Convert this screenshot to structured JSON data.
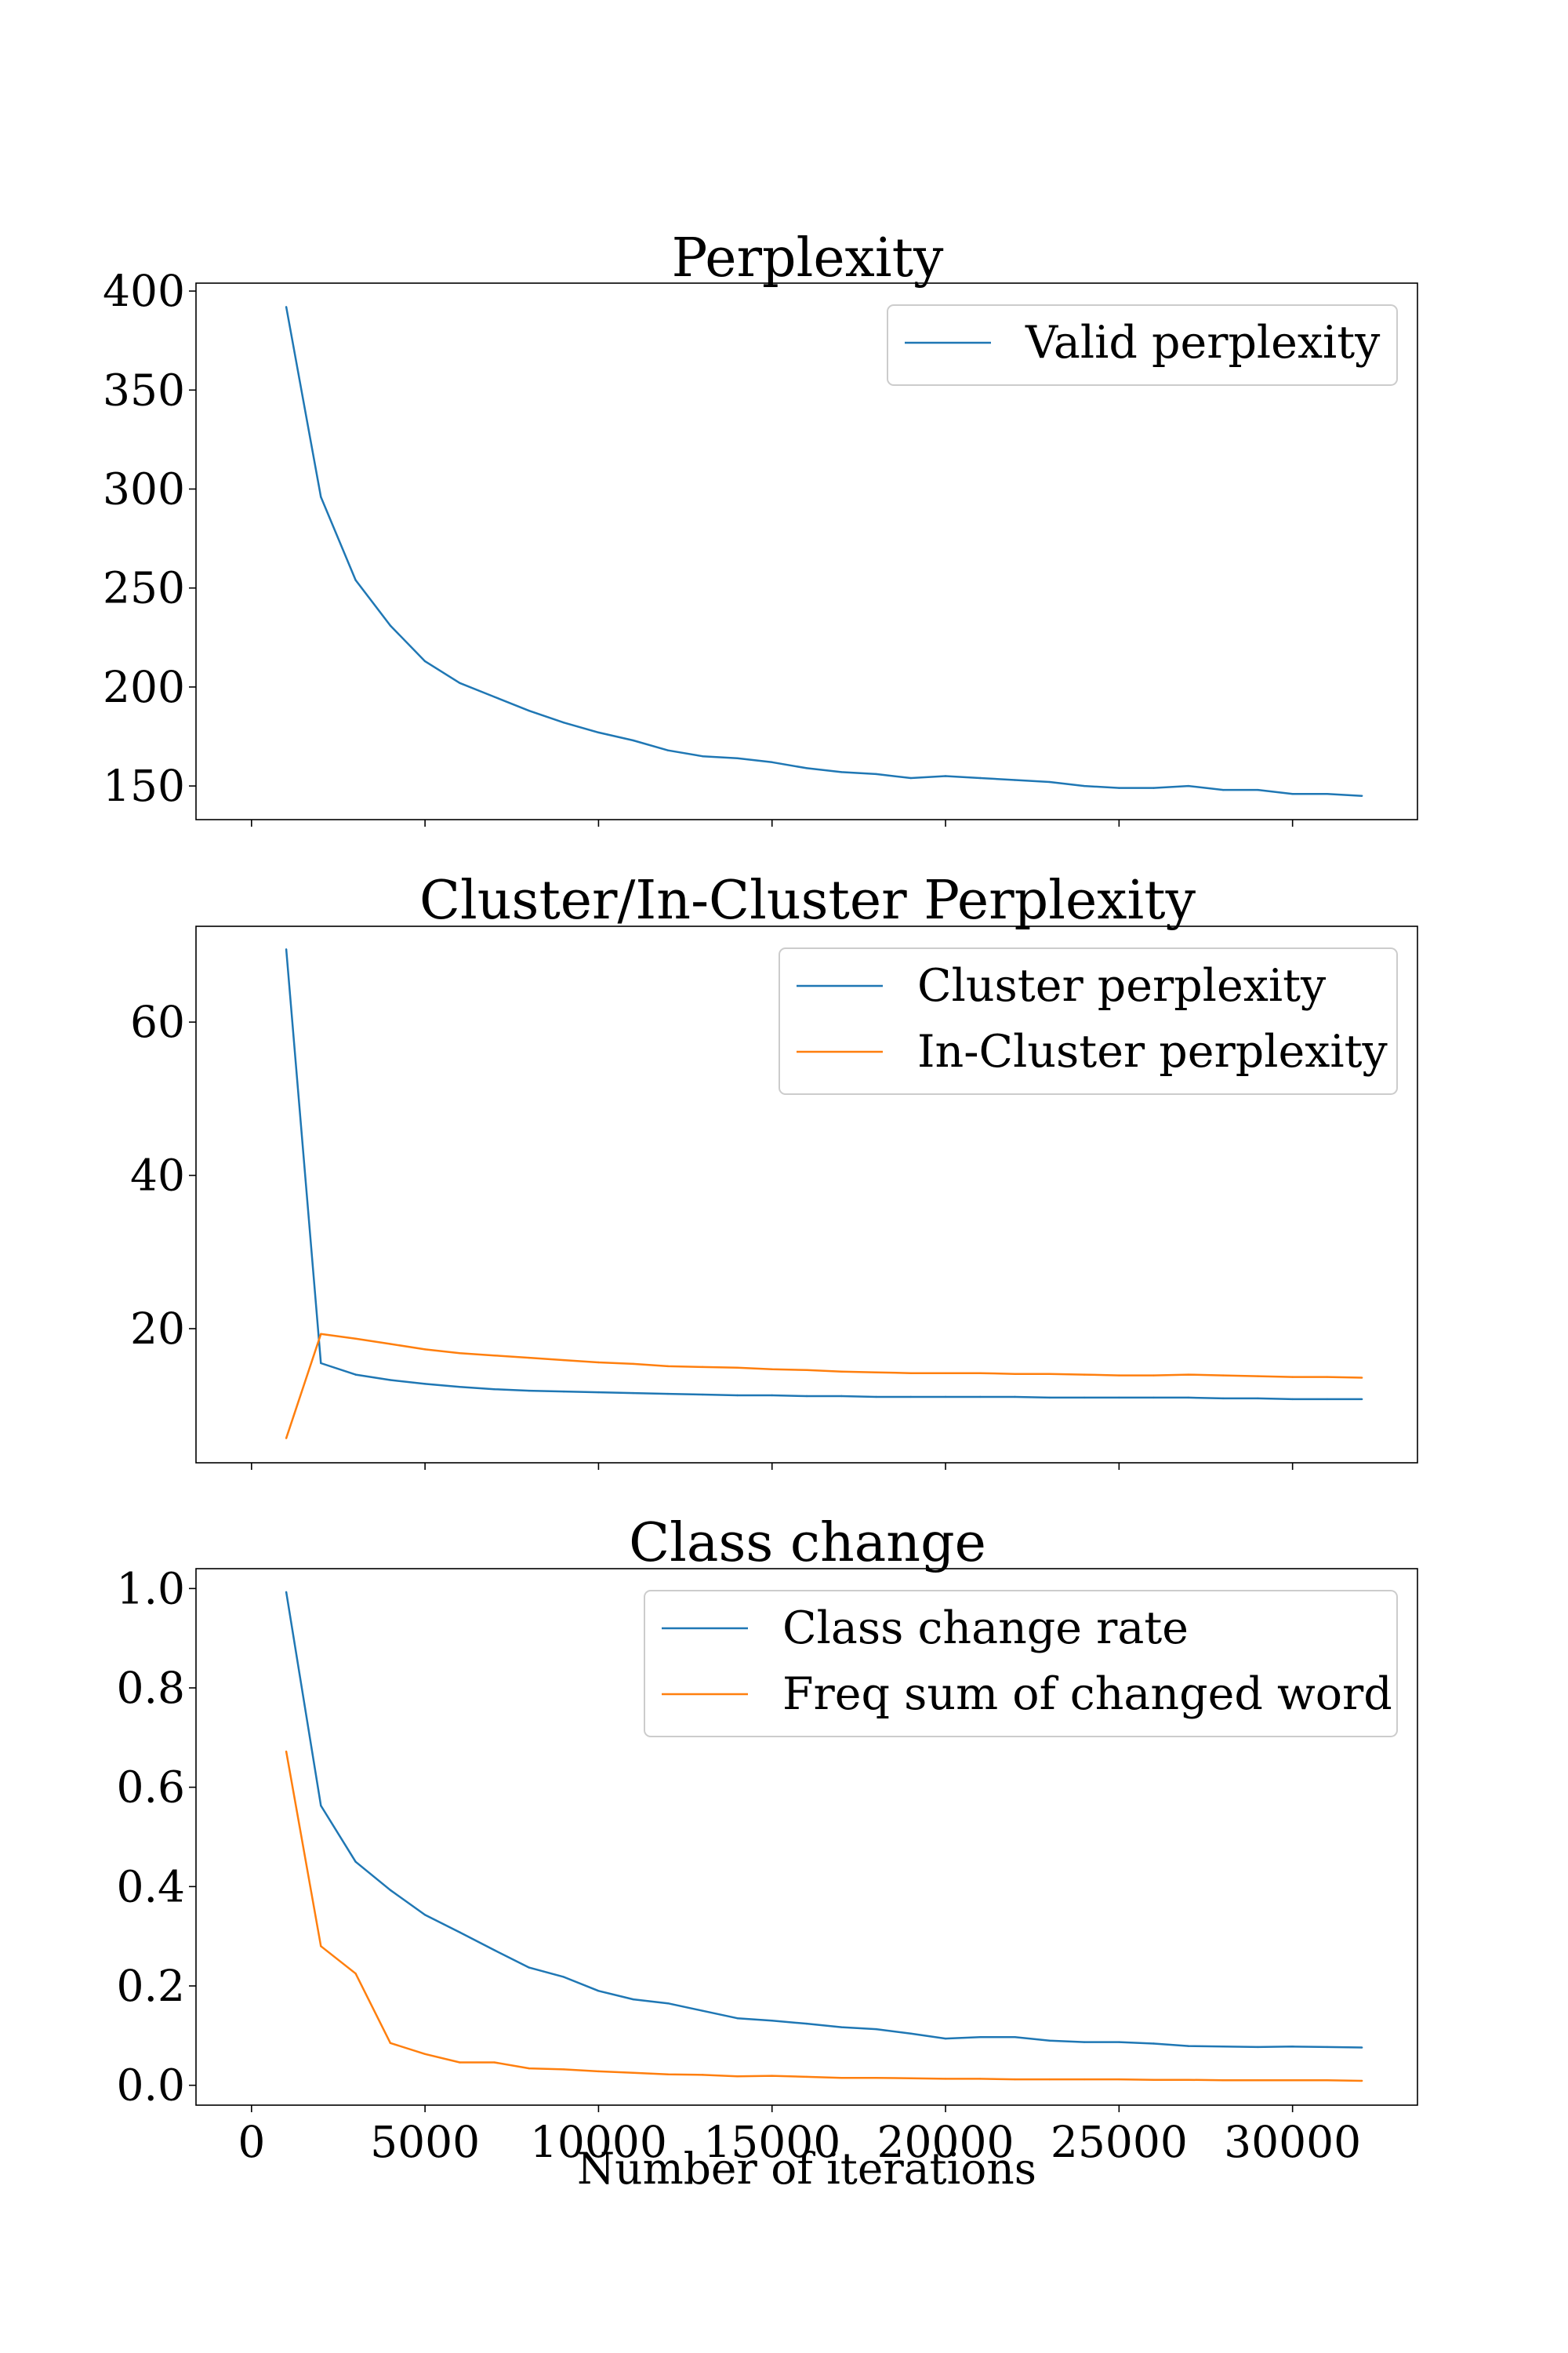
{
  "colors": {
    "blue": "#1f77b4",
    "orange": "#ff7f0e"
  },
  "xlabel": "Number of iterations",
  "chart_data": [
    {
      "type": "line",
      "title": "Perplexity",
      "xlabel": "",
      "ylabel": "",
      "xlim": [
        -1600,
        33600
      ],
      "ylim": [
        133,
        404
      ],
      "xticks": [
        0,
        5000,
        10000,
        15000,
        20000,
        25000,
        30000
      ],
      "yticks": [
        150,
        200,
        250,
        300,
        350,
        400
      ],
      "legend": "top-right",
      "x": [
        1000,
        2000,
        3000,
        4000,
        5000,
        6000,
        7000,
        8000,
        9000,
        10000,
        11000,
        12000,
        13000,
        14000,
        15000,
        16000,
        17000,
        18000,
        19000,
        20000,
        21000,
        22000,
        23000,
        24000,
        25000,
        26000,
        27000,
        28000,
        29000,
        30000,
        31000,
        32000
      ],
      "series": [
        {
          "name": "Valid perplexity",
          "color": "#1f77b4",
          "values": [
            392,
            296,
            254,
            231,
            213,
            202,
            195,
            188,
            182,
            177,
            173,
            168,
            165,
            164,
            162,
            159,
            157,
            156,
            154,
            155,
            154,
            153,
            152,
            150,
            149,
            149,
            150,
            148,
            148,
            146,
            146,
            145
          ]
        }
      ]
    },
    {
      "type": "line",
      "title": "Cluster/In-Cluster Perplexity",
      "xlabel": "",
      "ylabel": "",
      "xlim": [
        -1600,
        33600
      ],
      "ylim": [
        2.5,
        72.5
      ],
      "xticks": [
        0,
        5000,
        10000,
        15000,
        20000,
        25000,
        30000
      ],
      "yticks": [
        20,
        40,
        60
      ],
      "legend": "top-right",
      "x": [
        1000,
        2000,
        3000,
        4000,
        5000,
        6000,
        7000,
        8000,
        9000,
        10000,
        11000,
        12000,
        13000,
        14000,
        15000,
        16000,
        17000,
        18000,
        19000,
        20000,
        21000,
        22000,
        23000,
        24000,
        25000,
        26000,
        27000,
        28000,
        29000,
        30000,
        31000,
        32000
      ],
      "series": [
        {
          "name": "Cluster perplexity",
          "color": "#1f77b4",
          "values": [
            69.5,
            15.5,
            14.0,
            13.3,
            12.8,
            12.4,
            12.1,
            11.9,
            11.8,
            11.7,
            11.6,
            11.5,
            11.4,
            11.3,
            11.3,
            11.2,
            11.2,
            11.1,
            11.1,
            11.1,
            11.1,
            11.1,
            11.0,
            11.0,
            11.0,
            11.0,
            11.0,
            10.9,
            10.9,
            10.8,
            10.8,
            10.8
          ]
        },
        {
          "name": "In-Cluster perplexity",
          "color": "#ff7f0e",
          "values": [
            5.7,
            19.3,
            18.7,
            18.0,
            17.3,
            16.8,
            16.5,
            16.2,
            15.9,
            15.6,
            15.4,
            15.1,
            15.0,
            14.9,
            14.7,
            14.6,
            14.4,
            14.3,
            14.2,
            14.2,
            14.2,
            14.1,
            14.1,
            14.0,
            13.9,
            13.9,
            14.0,
            13.9,
            13.8,
            13.7,
            13.7,
            13.6
          ]
        }
      ]
    },
    {
      "type": "line",
      "title": "Class change",
      "xlabel": "Number of iterations",
      "ylabel": "",
      "xlim": [
        -1600,
        33600
      ],
      "ylim": [
        -0.04,
        1.04
      ],
      "xticks": [
        0,
        5000,
        10000,
        15000,
        20000,
        25000,
        30000
      ],
      "xtick_labels": [
        "0",
        "5000",
        "10000",
        "15000",
        "20000",
        "25000",
        "30000"
      ],
      "yticks": [
        0.0,
        0.2,
        0.4,
        0.6,
        0.8,
        1.0
      ],
      "ytick_labels": [
        "0.0",
        "0.2",
        "0.4",
        "0.6",
        "0.8",
        "1.0"
      ],
      "legend": "top-right",
      "x": [
        1000,
        2000,
        3000,
        4000,
        5000,
        6000,
        7000,
        8000,
        9000,
        10000,
        11000,
        12000,
        13000,
        14000,
        15000,
        16000,
        17000,
        18000,
        19000,
        20000,
        21000,
        22000,
        23000,
        24000,
        25000,
        26000,
        27000,
        28000,
        29000,
        30000,
        31000,
        32000
      ],
      "series": [
        {
          "name": "Class change rate",
          "color": "#1f77b4",
          "values": [
            0.993,
            0.563,
            0.45,
            0.393,
            0.343,
            0.308,
            0.272,
            0.237,
            0.218,
            0.19,
            0.173,
            0.165,
            0.15,
            0.135,
            0.13,
            0.124,
            0.117,
            0.113,
            0.104,
            0.094,
            0.097,
            0.097,
            0.09,
            0.087,
            0.087,
            0.084,
            0.079,
            0.078,
            0.077,
            0.078,
            0.077,
            0.076
          ]
        },
        {
          "name": "Freq sum of changed word",
          "color": "#ff7f0e",
          "values": [
            0.672,
            0.28,
            0.225,
            0.085,
            0.063,
            0.046,
            0.046,
            0.034,
            0.032,
            0.028,
            0.025,
            0.022,
            0.021,
            0.018,
            0.019,
            0.017,
            0.015,
            0.015,
            0.014,
            0.013,
            0.013,
            0.012,
            0.012,
            0.012,
            0.012,
            0.011,
            0.011,
            0.01,
            0.01,
            0.01,
            0.01,
            0.009
          ]
        }
      ]
    }
  ]
}
